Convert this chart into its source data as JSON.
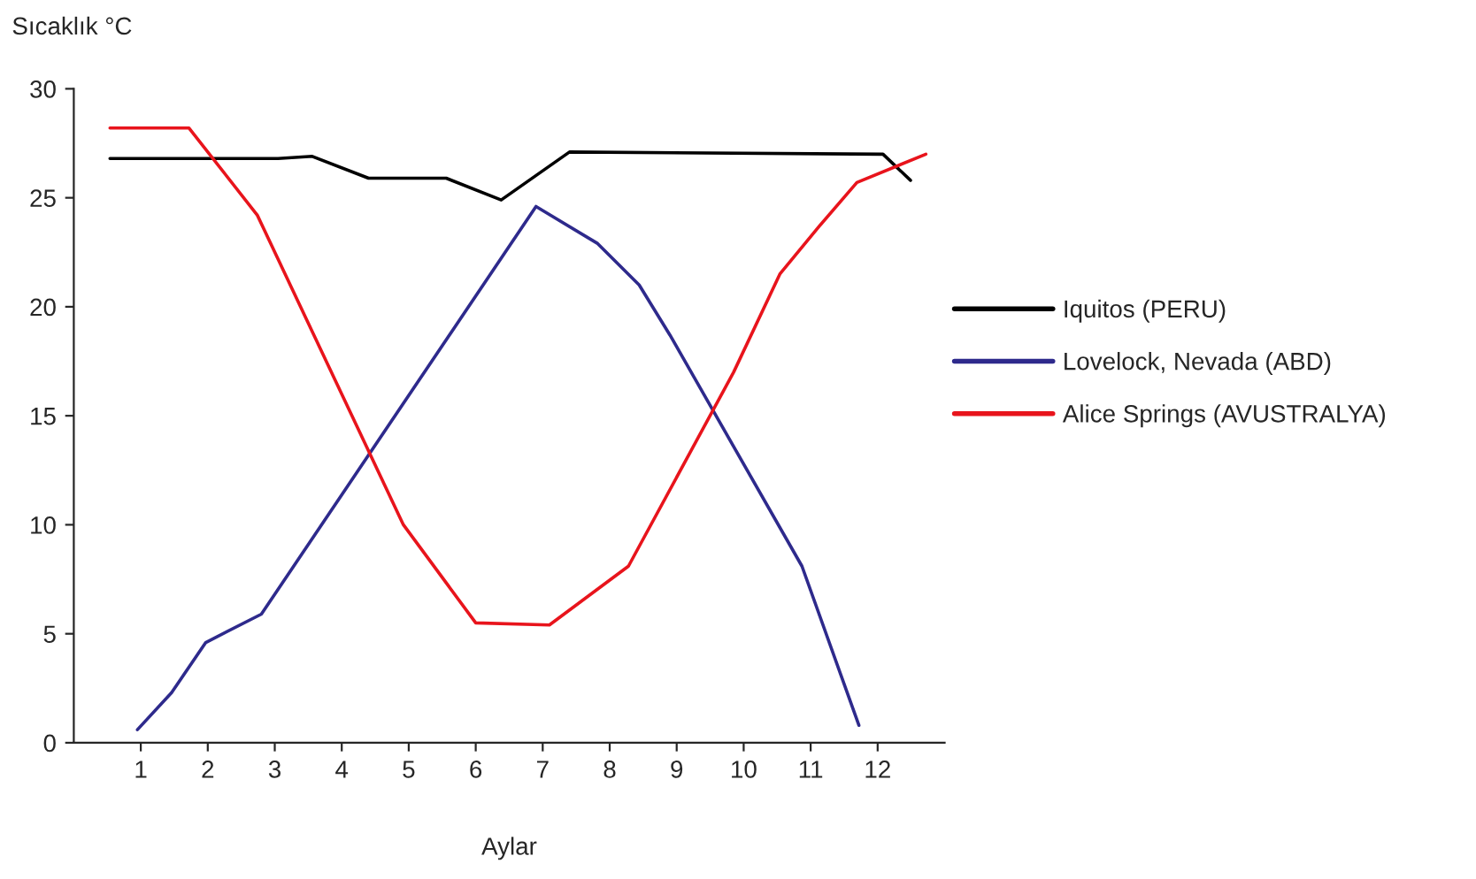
{
  "chart_data": {
    "type": "line",
    "ylabel": "Sıcaklık °C",
    "xlabel": "Aylar",
    "xlim": [
      0,
      13
    ],
    "xticks": [
      1,
      2,
      3,
      4,
      5,
      6,
      7,
      8,
      9,
      10,
      11,
      12
    ],
    "ylim": [
      0,
      30
    ],
    "yticks": [
      0,
      5,
      10,
      15,
      20,
      25,
      30
    ],
    "grid": false,
    "legend": "right",
    "line_style": "solid",
    "marker": "none",
    "series": [
      {
        "name": "Iquitos (PERU)",
        "color": "#000000",
        "x": [
          0.54,
          2.03,
          3.05,
          3.56,
          4.4,
          5.56,
          6.38,
          7.4,
          12.08,
          12.49
        ],
        "values": [
          26.8,
          26.8,
          26.8,
          26.9,
          25.9,
          25.9,
          24.9,
          27.1,
          27.0,
          25.8
        ]
      },
      {
        "name": "Lovelock, Nevada (ABD)",
        "color": "#2e2a8c",
        "x": [
          0.95,
          1.46,
          1.97,
          2.8,
          6.9,
          7.82,
          8.44,
          8.9,
          10.87,
          11.72
        ],
        "values": [
          0.6,
          2.3,
          4.6,
          5.9,
          24.6,
          22.9,
          21.0,
          18.7,
          8.1,
          0.8
        ]
      },
      {
        "name": "Alice Springs (AVUSTRALYA)",
        "color": "#e8141c",
        "x": [
          0.54,
          1.72,
          2.74,
          4.92,
          6.0,
          7.1,
          8.28,
          9.85,
          10.54,
          11.13,
          11.69,
          12.72
        ],
        "values": [
          28.2,
          28.2,
          24.2,
          10.0,
          5.5,
          5.4,
          8.1,
          17.0,
          21.5,
          23.7,
          25.7,
          27.0
        ]
      }
    ]
  }
}
